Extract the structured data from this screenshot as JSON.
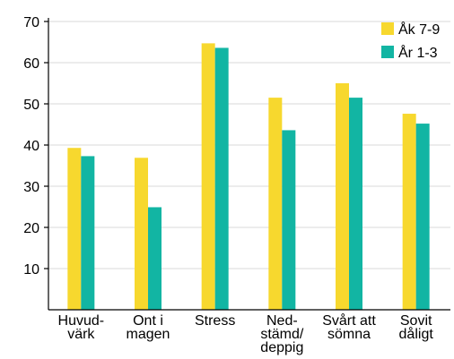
{
  "chart_data": {
    "type": "bar",
    "categories": [
      [
        "Huvud-",
        "värk"
      ],
      [
        "Ont i",
        "magen"
      ],
      [
        "Stress"
      ],
      [
        "Ned-",
        "stämd/",
        "deppig"
      ],
      [
        "Svårt att",
        "sömna"
      ],
      [
        "Sovit",
        "dåligt"
      ]
    ],
    "series": [
      {
        "name": "Åk 7-9",
        "values": [
          39.3,
          36.9,
          64.7,
          51.5,
          55.0,
          47.6
        ]
      },
      {
        "name": "År 1-3",
        "values": [
          37.3,
          24.9,
          63.6,
          43.6,
          51.5,
          45.2
        ]
      }
    ],
    "colors": [
      "#f7d82e",
      "#12b5a3"
    ],
    "ylim": [
      0,
      70
    ],
    "yticks": [
      10,
      20,
      30,
      40,
      50,
      60,
      70
    ],
    "grid": true,
    "legend_position": "top-right"
  }
}
